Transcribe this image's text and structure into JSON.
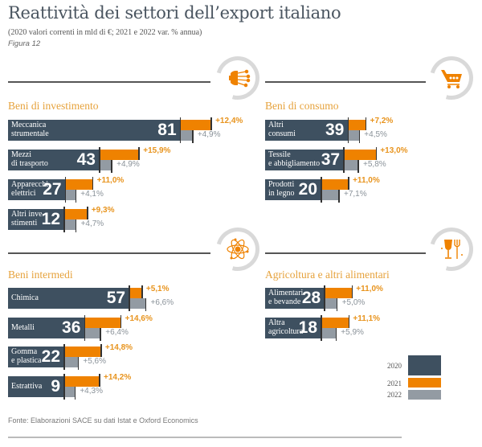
{
  "header": {
    "title": "Reattività dei settori dell’export italiano",
    "subtitle": "(2020 valori correnti in mld di €; 2021 e 2022 var. % annua)",
    "figure_label": "Figura 12"
  },
  "colors": {
    "y2020": "#3e5060",
    "y2021": "#ef8200",
    "y2022": "#939ba3",
    "section_title": "#e6a23c"
  },
  "chart_data": {
    "type": "bar",
    "title": "Reattività dei settori dell’export italiano",
    "subtitle": "(2020 valori correnti in mld di €; 2021 e 2022 var. % annua)",
    "legend": [
      "2020",
      "2021",
      "2022"
    ],
    "legend_position": "bottom-right",
    "sections": [
      {
        "name": "Beni di investimento",
        "icon": "gear-circuit-icon",
        "items": [
          {
            "label": [
              "Meccanica",
              "strumentale"
            ],
            "v2020": 81,
            "v2021": 12.4,
            "v2022": 4.9,
            "p2021": "+12,4%",
            "p2022": "+4,9%"
          },
          {
            "label": [
              "Mezzi",
              "di trasporto"
            ],
            "v2020": 43,
            "v2021": 15.9,
            "v2022": 4.9,
            "p2021": "+15,9%",
            "p2022": "+4,9%"
          },
          {
            "label": [
              "Apparecchi",
              "elettrici"
            ],
            "v2020": 27,
            "v2021": 11.0,
            "v2022": 4.1,
            "p2021": "+11,0%",
            "p2022": "+4,1%"
          },
          {
            "label": [
              "Altri inve-",
              "stimenti"
            ],
            "v2020": 12,
            "v2021": 9.3,
            "v2022": 4.7,
            "p2021": "+9,3%",
            "p2022": "+4,7%"
          }
        ]
      },
      {
        "name": "Beni di consumo",
        "icon": "shopping-cart-icon",
        "items": [
          {
            "label": [
              "Altri",
              "consumi"
            ],
            "v2020": 39,
            "v2021": 7.2,
            "v2022": 4.5,
            "p2021": "+7,2%",
            "p2022": "+4,5%"
          },
          {
            "label": [
              "Tessile",
              "e abbigliamento"
            ],
            "v2020": 37,
            "v2021": 13.0,
            "v2022": 5.8,
            "p2021": "+13,0%",
            "p2022": "+5,8%"
          },
          {
            "label": [
              "Prodotti",
              "in legno"
            ],
            "v2020": 20,
            "v2021": 11.0,
            "v2022": 7.1,
            "p2021": "+11,0%",
            "p2022": "+7,1%"
          }
        ]
      },
      {
        "name": "Beni intermedi",
        "icon": "atom-icon",
        "items": [
          {
            "label": [
              "Chimica"
            ],
            "v2020": 57,
            "v2021": 5.1,
            "v2022": 6.6,
            "p2021": "+5,1%",
            "p2022": "+6,6%"
          },
          {
            "label": [
              "Metalli"
            ],
            "v2020": 36,
            "v2021": 14.6,
            "v2022": 6.4,
            "p2021": "+14,6%",
            "p2022": "+6,4%"
          },
          {
            "label": [
              "Gomma",
              "e plastica"
            ],
            "v2020": 22,
            "v2021": 14.8,
            "v2022": 5.6,
            "p2021": "+14,8%",
            "p2022": "+5,6%"
          },
          {
            "label": [
              "Estrattiva"
            ],
            "v2020": 9,
            "v2021": 14.2,
            "v2022": 4.3,
            "p2021": "+14,2%",
            "p2022": "+4,3%"
          }
        ]
      },
      {
        "name": "Agricoltura e altri alimentari",
        "icon": "wine-glass-fork-icon",
        "items": [
          {
            "label": [
              "Alimentari",
              "e bevande"
            ],
            "v2020": 28,
            "v2021": 11.0,
            "v2022": 5.0,
            "p2021": "+11,0%",
            "p2022": "+5,0%"
          },
          {
            "label": [
              "Altra",
              "agricoltura"
            ],
            "v2020": 18,
            "v2021": 11.1,
            "v2022": 5.9,
            "p2021": "+11,1%",
            "p2022": "+5,9%"
          }
        ]
      }
    ]
  },
  "source": "Fonte: Elaborazioni SACE su dati Istat e Oxford Economics"
}
